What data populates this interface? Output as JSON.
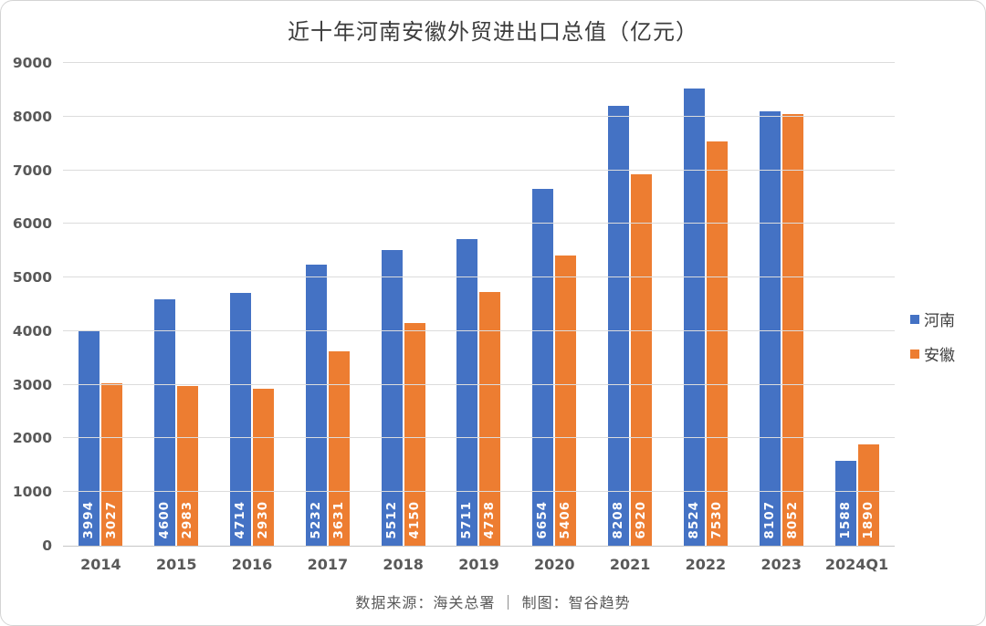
{
  "chart_data": {
    "type": "bar",
    "title": "近十年河南安徽外贸进出口总值（亿元）",
    "footer": "数据来源：海关总署 ｜ 制图：智谷趋势",
    "categories": [
      "2014",
      "2015",
      "2016",
      "2017",
      "2018",
      "2019",
      "2020",
      "2021",
      "2022",
      "2023",
      "2024Q1"
    ],
    "series": [
      {
        "name": "河南",
        "color": "#4472C4",
        "values": [
          3994,
          4600,
          4714,
          5232,
          5512,
          5711,
          6654,
          8208,
          8524,
          8107,
          1588
        ]
      },
      {
        "name": "安徽",
        "color": "#ED7D31",
        "values": [
          3027,
          2983,
          2930,
          3631,
          4150,
          4738,
          5406,
          6920,
          7530,
          8052,
          1890
        ]
      }
    ],
    "ylim": [
      0,
      9000
    ],
    "y_ticks": [
      0,
      1000,
      2000,
      3000,
      4000,
      5000,
      6000,
      7000,
      8000,
      9000
    ],
    "grid": true,
    "legend_position": "right",
    "value_label_style": "rotated-white-inside-bar-base"
  }
}
